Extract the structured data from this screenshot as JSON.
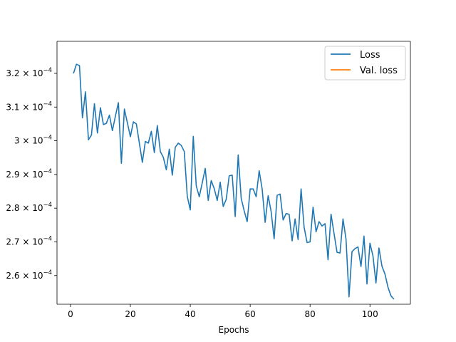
{
  "chart_data": {
    "type": "line",
    "title": "",
    "xlabel": "Epochs",
    "ylabel": "",
    "xlim": [
      -4.5,
      113.5
    ],
    "ylim": [
      0.0002515,
      0.0003295
    ],
    "grid": false,
    "legend_placement": "top-right",
    "x_ticks": [
      0,
      20,
      40,
      60,
      80,
      100
    ],
    "x_tick_labels": [
      "0",
      "20",
      "40",
      "60",
      "80",
      "100"
    ],
    "y_ticks": [
      0.00026,
      0.00027,
      0.00028,
      0.00029,
      0.0003,
      0.00031,
      0.00032
    ],
    "y_tick_labels": [
      {
        "mantissa": "2.6",
        "base": "10",
        "exp": "−4"
      },
      {
        "mantissa": "2.7",
        "base": "10",
        "exp": "−4"
      },
      {
        "mantissa": "2.8",
        "base": "10",
        "exp": "−4"
      },
      {
        "mantissa": "2.9",
        "base": "10",
        "exp": "−4"
      },
      {
        "mantissa": "3",
        "base": "10",
        "exp": "−4"
      },
      {
        "mantissa": "3.1",
        "base": "10",
        "exp": "−4"
      },
      {
        "mantissa": "3.2",
        "base": "10",
        "exp": "−4"
      }
    ],
    "series": [
      {
        "name": "Loss",
        "color": "#1f77b4",
        "x": [
          1,
          2,
          3,
          4,
          5,
          6,
          7,
          8,
          9,
          10,
          11,
          12,
          13,
          14,
          15,
          16,
          17,
          18,
          19,
          20,
          21,
          22,
          23,
          24,
          25,
          26,
          27,
          28,
          29,
          30,
          31,
          32,
          33,
          34,
          35,
          36,
          37,
          38,
          39,
          40,
          41,
          42,
          43,
          44,
          45,
          46,
          47,
          48,
          49,
          50,
          51,
          52,
          53,
          54,
          55,
          56,
          57,
          58,
          59,
          60,
          61,
          62,
          63,
          64,
          65,
          66,
          67,
          68,
          69,
          70,
          71,
          72,
          73,
          74,
          75,
          76,
          77,
          78,
          79,
          80,
          81,
          82,
          83,
          84,
          85,
          86,
          87,
          88,
          89,
          90,
          91,
          92,
          93,
          94,
          95,
          96,
          97,
          98,
          99,
          100,
          101,
          102,
          103,
          104,
          105,
          106,
          107,
          108
        ],
        "values": [
          0.00032,
          0.0003227,
          0.0003223,
          0.0003068,
          0.0003145,
          0.0003003,
          0.0003017,
          0.000311,
          0.0003023,
          0.0003098,
          0.0003048,
          0.0003052,
          0.0003076,
          0.000303,
          0.0003073,
          0.0003113,
          0.0002933,
          0.0003094,
          0.0003053,
          0.0003012,
          0.0003056,
          0.000305,
          0.0002993,
          0.0002936,
          0.0002998,
          0.0002993,
          0.0003028,
          0.0002965,
          0.0003045,
          0.0002968,
          0.0002951,
          0.0002914,
          0.0002975,
          0.0002898,
          0.0002981,
          0.0002993,
          0.0002986,
          0.0002968,
          0.0002835,
          0.0002795,
          0.0003013,
          0.0002866,
          0.0002834,
          0.0002875,
          0.0002918,
          0.0002823,
          0.0002882,
          0.0002858,
          0.0002823,
          0.0002877,
          0.0002805,
          0.0002826,
          0.0002896,
          0.0002898,
          0.0002775,
          0.0002958,
          0.0002829,
          0.0002792,
          0.000276,
          0.0002857,
          0.0002857,
          0.0002834,
          0.0002911,
          0.0002857,
          0.0002758,
          0.0002837,
          0.000279,
          0.0002709,
          0.0002838,
          0.0002842,
          0.0002765,
          0.0002784,
          0.0002782,
          0.0002703,
          0.0002768,
          0.0002707,
          0.0002857,
          0.0002744,
          0.0002698,
          0.00027,
          0.0002803,
          0.000273,
          0.000276,
          0.0002747,
          0.0002754,
          0.0002647,
          0.0002782,
          0.0002725,
          0.0002669,
          0.0002667,
          0.0002768,
          0.0002708,
          0.0002537,
          0.0002671,
          0.000268,
          0.0002685,
          0.0002627,
          0.0002717,
          0.0002575,
          0.0002696,
          0.0002658,
          0.0002578,
          0.0002682,
          0.0002628,
          0.0002605,
          0.0002566,
          0.000254,
          0.000253
        ]
      },
      {
        "name": "Val. loss",
        "color": "#ff7f0e",
        "x": [],
        "values": []
      }
    ]
  }
}
